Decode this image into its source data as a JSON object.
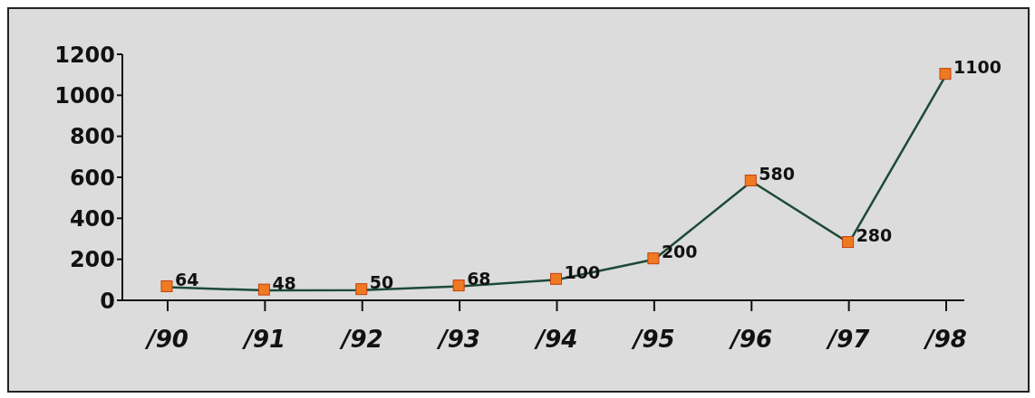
{
  "chart_data": {
    "type": "line",
    "categories": [
      "/90",
      "/91",
      "/92",
      "/93",
      "/94",
      "/95",
      "/96",
      "/97",
      "/98"
    ],
    "series": [
      {
        "color": "#1d4a36",
        "colors": [
          "#f07a22",
          "#f07a22",
          "#f07a22",
          "#f07a22",
          "#f07a22",
          "#f07a22",
          "#f07a22",
          "#f07a22",
          "#f07a22"
        ],
        "values": [
          64,
          48,
          50,
          68,
          100,
          200,
          580,
          280,
          1100
        ]
      }
    ],
    "ylim": [
      0,
      1200
    ],
    "yticks": [
      0,
      200,
      400,
      600,
      800,
      1000,
      1200
    ],
    "grid": false,
    "legend": false,
    "marker": "square",
    "line_style": "solid",
    "data_labels": true
  }
}
